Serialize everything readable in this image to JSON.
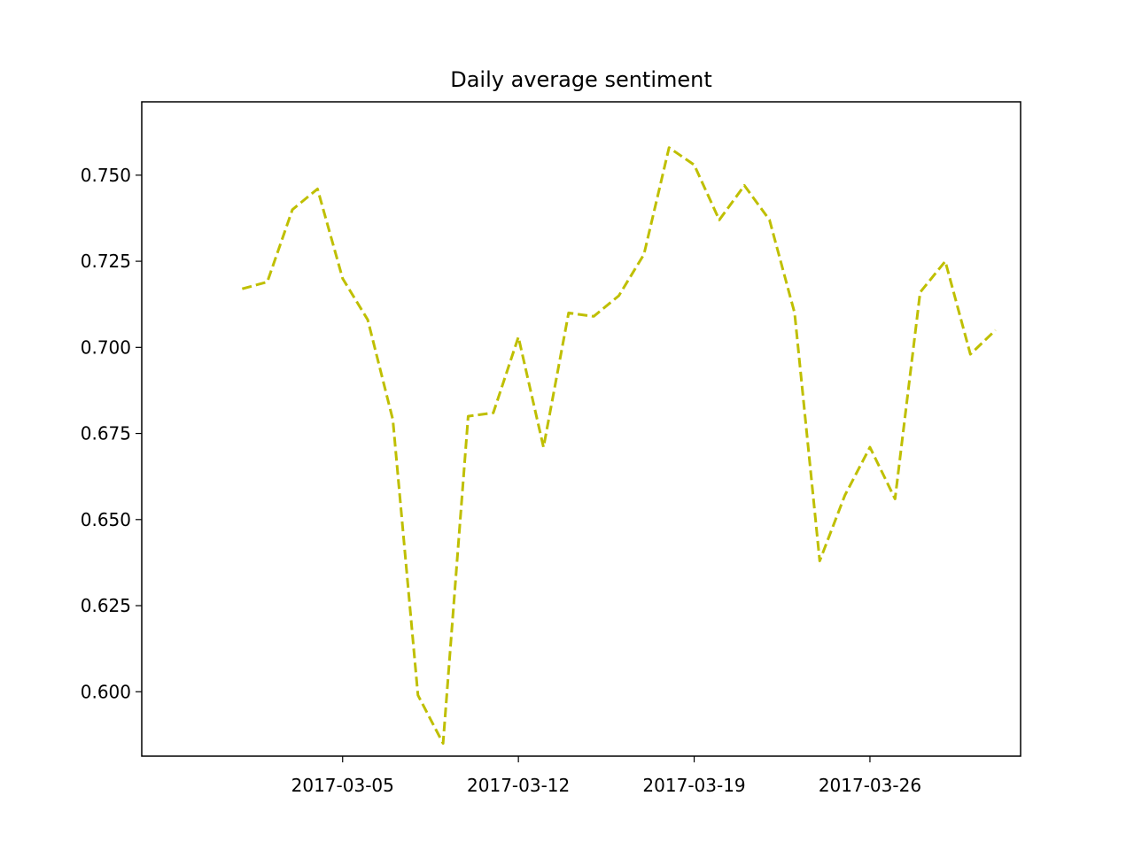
{
  "chart_data": {
    "type": "line",
    "title": "Daily average sentiment",
    "xlabel": "",
    "ylabel": "",
    "x_type": "date",
    "x": [
      "2017-03-01",
      "2017-03-02",
      "2017-03-03",
      "2017-03-04",
      "2017-03-05",
      "2017-03-06",
      "2017-03-07",
      "2017-03-08",
      "2017-03-09",
      "2017-03-10",
      "2017-03-11",
      "2017-03-12",
      "2017-03-13",
      "2017-03-14",
      "2017-03-15",
      "2017-03-16",
      "2017-03-17",
      "2017-03-18",
      "2017-03-19",
      "2017-03-20",
      "2017-03-21",
      "2017-03-22",
      "2017-03-23",
      "2017-03-24",
      "2017-03-25",
      "2017-03-26",
      "2017-03-27",
      "2017-03-28",
      "2017-03-29",
      "2017-03-30",
      "2017-03-31"
    ],
    "series": [
      {
        "values": [
          0.717,
          0.719,
          0.74,
          0.746,
          0.72,
          0.708,
          0.679,
          0.599,
          0.585,
          0.68,
          0.681,
          0.703,
          0.671,
          0.71,
          0.709,
          0.715,
          0.727,
          0.758,
          0.753,
          0.737,
          0.747,
          0.737,
          0.71,
          0.638,
          0.657,
          0.671,
          0.656,
          0.716,
          0.725,
          0.698,
          0.705
        ],
        "color": "#bfbf00",
        "linestyle": "dashed"
      }
    ],
    "xlim": [
      "2017-02-25",
      "2017-04-01"
    ],
    "ylim": [
      0.5813,
      0.7713
    ],
    "xticks": [
      "2017-03-05",
      "2017-03-12",
      "2017-03-19",
      "2017-03-26"
    ],
    "yticks": [
      0.6,
      0.625,
      0.65,
      0.675,
      0.7,
      0.725,
      0.75
    ],
    "ytick_labels": [
      "0.600",
      "0.625",
      "0.650",
      "0.675",
      "0.700",
      "0.725",
      "0.750"
    ],
    "grid": false,
    "legend": false
  }
}
